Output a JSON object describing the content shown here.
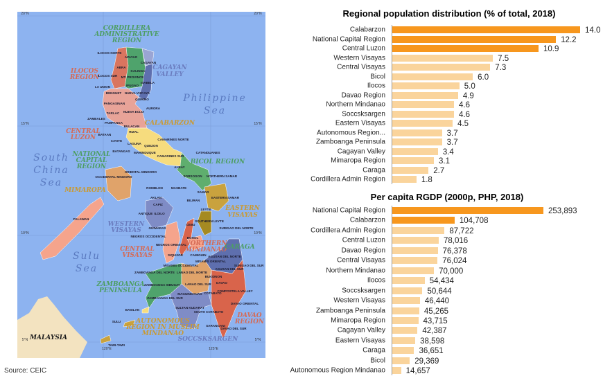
{
  "source": "Source: CEIC",
  "colors": {
    "highlight": "#F7971E",
    "normal": "#FAD49C",
    "sea": "#8DB3F0",
    "land_foreign": "#F3E3C0"
  },
  "map": {
    "grid_labels": [
      "20°N",
      "20°N",
      "15°N",
      "15°N",
      "10°N",
      "10°N",
      "5°N",
      "5°N",
      "120°E",
      "125°E"
    ],
    "seas": [
      "Philippine",
      "Sea",
      "South",
      "China",
      "Sea",
      "Sulu",
      "Sea"
    ],
    "country": "MALAYSIA",
    "regions": [
      "CORDILLERA",
      "ADMINISTRATIVE",
      "REGION",
      "ILOCOS",
      "REGION",
      "CAGAYAN",
      "VALLEY",
      "CENTRAL",
      "LUZON",
      "CALABARZON",
      "NATIONAL",
      "CAPITAL",
      "REGION",
      "BICOL REGION",
      "MIMAROPA",
      "WESTERN",
      "VISAYAS",
      "EASTERN",
      "VISAYAS",
      "CENTRAL",
      "VISAYAS",
      "NORTHERN",
      "MINDANAO",
      "CARAGA",
      "ZAMBOANGA",
      "PENINSULA",
      "AUTONOMOUS",
      "REGION IN MUSLIM",
      "MINDANAO",
      "DAVAO",
      "REGION",
      "SOCCSKSARGEN"
    ],
    "provinces": [
      "ILOCOS NORTE",
      "APAYAO",
      "CAGAYAN",
      "ABRA",
      "KALINGA",
      "ILOCOS SUR",
      "MT. PROVINCE",
      "ISABELA",
      "IFUGAO",
      "LA UNION",
      "BENGUET",
      "NUEVA VIZCAYA",
      "QUIRINO",
      "PANGASINAN",
      "AURORA",
      "TARLAC",
      "NUEVA ECIJA",
      "ZAMBALES",
      "PAMPANGA",
      "BULACAN",
      "BATAAN",
      "RIZAL",
      "CAVITE",
      "LAGUNA",
      "QUEZON",
      "BATANGAS",
      "CAMARINES NORTE",
      "CAMARINES SUR",
      "CATANDUANES",
      "ALBAY",
      "MARINDUQUE",
      "ORIENTAL MINDORO",
      "OCCIDENTAL MINDORO",
      "SORSOGON",
      "NORTHERN SAMAR",
      "MASBATE",
      "ROMBLON",
      "SAMAR",
      "EASTERN SAMAR",
      "AKLAN",
      "CAPIZ",
      "BILIRAN",
      "LEYTE",
      "ANTIQUE",
      "ILOILO",
      "PALAWAN",
      "GUIMARAS",
      "CEBU",
      "SOUTHERN LEYTE",
      "SURIGAO DEL NORTE",
      "NEGROS OCCIDENTAL",
      "BOHOL",
      "NEGROS ORIENTAL",
      "SIQUIJOR",
      "CAMIGUIN",
      "AGUSAN DEL NORTE",
      "MISAMIS ORIENTAL",
      "MISAMIS OCCIDENTAL",
      "SURIGAO DEL SUR",
      "ZAMBOANGA DEL NORTE",
      "LANAO DEL NORTE",
      "AGUSAN DEL SUR",
      "BUKIDNON",
      "ZAMBOANGA SIBUGAY",
      "LANAO DEL SUR",
      "DAVAO",
      "COMPOSTELA VALLEY",
      "ZAMBOANGA DEL SUR",
      "MAGUINDANAO",
      "COTABATO",
      "DAVAO ORIENTAL",
      "SULTAN KUDARAT",
      "SOUTH COTABATO",
      "BASILAN",
      "SULU",
      "SARANGANI",
      "DAVAO DEL SUR",
      "TAWI-TAWI"
    ]
  },
  "chart_data": [
    {
      "type": "bar",
      "orientation": "horizontal",
      "title": "Regional population distribution (% of total, 2018)",
      "categories": [
        "Calabarzon",
        "National Capital Region",
        "Central Luzon",
        "Western Visayas",
        "Central Visayas",
        "Bicol",
        "Ilocos",
        "Davao Region",
        "Northern Mindanao",
        "Soccsksargen",
        "Eastern Visayas",
        "Autonomous Region...",
        "Zamboanga Peninsula",
        "Cagayan Valley",
        "Mimaropa Region",
        "Caraga",
        "Cordillera Admin Region"
      ],
      "values": [
        14.0,
        12.2,
        10.9,
        7.5,
        7.3,
        6.0,
        5.0,
        4.9,
        4.6,
        4.6,
        4.5,
        3.7,
        3.7,
        3.4,
        3.1,
        2.7,
        1.8
      ],
      "value_labels": [
        "14.0",
        "12.2",
        "10.9",
        "7.5",
        "7.3",
        "6.0",
        "5.0",
        "4.9",
        "4.6",
        "4.6",
        "4.5",
        "3.7",
        "3.7",
        "3.4",
        "3.1",
        "2.7",
        "1.8"
      ],
      "highlighted": [
        true,
        true,
        true,
        false,
        false,
        false,
        false,
        false,
        false,
        false,
        false,
        false,
        false,
        false,
        false,
        false,
        false
      ],
      "xlim": [
        0,
        14
      ],
      "grid": false
    },
    {
      "type": "bar",
      "orientation": "horizontal",
      "title": "Per capita RGDP (2000p, PHP, 2018)",
      "categories": [
        "National Capital Region",
        "Calabarzon",
        "Cordillera Admin Region",
        "Central Luzon",
        "Davao Region",
        "Central Visayas",
        "Northern Mindanao",
        "Ilocos",
        "Soccsksargen",
        "Western Visayas",
        "Zamboanga Peninsula",
        "Mimaropa Region",
        "Cagayan Valley",
        "Eastern Visayas",
        "Caraga",
        "Bicol",
        "Autonomous Region Mindanao"
      ],
      "values": [
        253893,
        104708,
        87722,
        78016,
        76378,
        76024,
        70000,
        54434,
        50644,
        46440,
        45265,
        43715,
        42387,
        38598,
        36651,
        29369,
        14657
      ],
      "value_labels": [
        "253,893",
        "104,708",
        "87,722",
        "78,016",
        "76,378",
        "76,024",
        "70,000",
        "54,434",
        "50,644",
        "46,440",
        "45,265",
        "43,715",
        "42,387",
        "38,598",
        "36,651",
        "29,369",
        "14,657"
      ],
      "highlighted": [
        true,
        true,
        false,
        false,
        false,
        false,
        false,
        false,
        false,
        false,
        false,
        false,
        false,
        false,
        false,
        false,
        false
      ],
      "xlim": [
        0,
        253893
      ],
      "grid": false
    }
  ]
}
